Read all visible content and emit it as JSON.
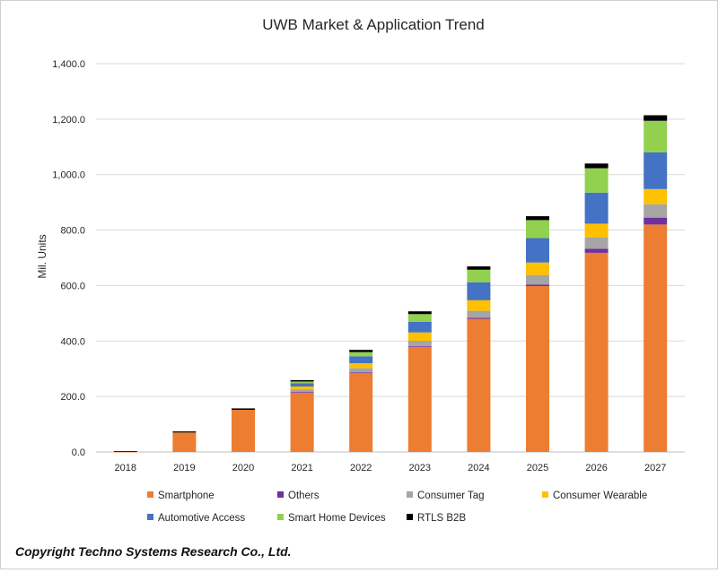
{
  "chart_data": {
    "type": "bar",
    "stacked": true,
    "title": "UWB Market & Application Trend",
    "xlabel": "",
    "ylabel": "Mil. Units",
    "ylim": [
      0,
      1400
    ],
    "yticks": [
      "0.0",
      "200.0",
      "400.0",
      "600.0",
      "800.0",
      "1,000.0",
      "1,200.0",
      "1,400.0"
    ],
    "grid": true,
    "legend_position": "bottom",
    "categories": [
      "2018",
      "2019",
      "2020",
      "2021",
      "2022",
      "2023",
      "2024",
      "2025",
      "2026",
      "2027"
    ],
    "series": [
      {
        "name": "Smartphone",
        "color": "#ED7D31",
        "values": [
          1,
          70,
          152,
          215,
          285,
          378,
          480,
          598,
          718,
          820
        ]
      },
      {
        "name": "Others",
        "color": "#7030A0",
        "values": [
          0,
          0,
          0,
          1,
          2,
          3,
          4,
          5,
          15,
          25
        ]
      },
      {
        "name": "Consumer Tag",
        "color": "#A5A5A5",
        "values": [
          0,
          0,
          0,
          10,
          15,
          20,
          25,
          35,
          40,
          48
        ]
      },
      {
        "name": "Consumer Wearable",
        "color": "#FFC000",
        "values": [
          0,
          0,
          0,
          10,
          18,
          30,
          38,
          45,
          50,
          55
        ]
      },
      {
        "name": "Automotive Access",
        "color": "#4472C4",
        "values": [
          0,
          0,
          0,
          12,
          25,
          38,
          65,
          88,
          112,
          132
        ]
      },
      {
        "name": "Smart Home Devices",
        "color": "#92D050",
        "values": [
          0,
          0,
          0,
          6,
          15,
          28,
          45,
          65,
          88,
          114
        ]
      },
      {
        "name": "RTLS B2B",
        "color": "#000000",
        "values": [
          2,
          4,
          5,
          5,
          8,
          10,
          12,
          14,
          17,
          20
        ]
      }
    ]
  },
  "copyright": "Copyright Techno Systems Research Co., Ltd."
}
